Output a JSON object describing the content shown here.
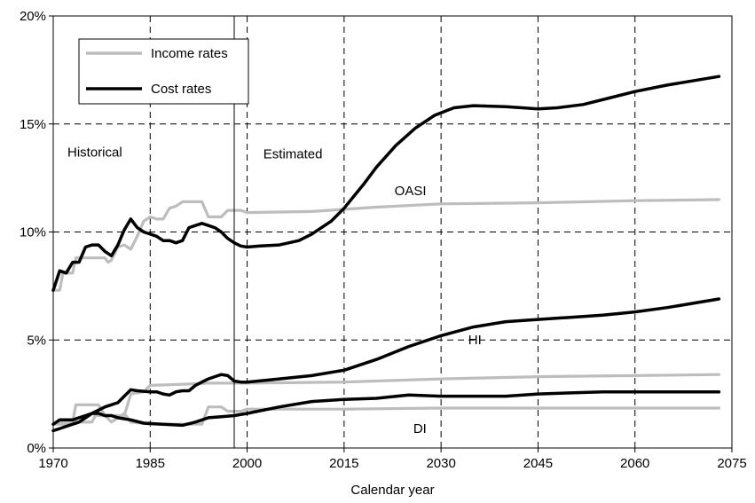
{
  "chart_data": {
    "type": "line",
    "title": "",
    "xlabel": "Calendar year",
    "ylabel": "",
    "xlim": [
      1970,
      2075
    ],
    "ylim": [
      0,
      20
    ],
    "x_ticks": [
      "1970",
      "1985",
      "2000",
      "2015",
      "2030",
      "2045",
      "2060",
      "2075"
    ],
    "y_ticks": [
      "0%",
      "5%",
      "10%",
      "15%",
      "20%"
    ],
    "grid": true,
    "legend": {
      "placement": "top-left",
      "entries": [
        {
          "label": "Income rates",
          "color": "#bdbdbd"
        },
        {
          "label": "Cost rates",
          "color": "#000000"
        }
      ]
    },
    "divider_year": 1998,
    "annotations": {
      "historical": "Historical",
      "estimated": "Estimated",
      "oasi": "OASI",
      "hi": "HI",
      "di": "DI"
    },
    "series": [
      {
        "program": "OASI",
        "kind": "income",
        "color": "#bdbdbd",
        "points": [
          [
            1970,
            7.3
          ],
          [
            1971,
            7.3
          ],
          [
            1971.5,
            8.1
          ],
          [
            1973,
            8.1
          ],
          [
            1973.5,
            8.8
          ],
          [
            1978,
            8.8
          ],
          [
            1978.5,
            8.6
          ],
          [
            1979,
            8.7
          ],
          [
            1980,
            9.3
          ],
          [
            1981,
            9.4
          ],
          [
            1982,
            9.2
          ],
          [
            1983,
            9.8
          ],
          [
            1984,
            10.5
          ],
          [
            1985,
            10.7
          ],
          [
            1986,
            10.6
          ],
          [
            1987,
            10.6
          ],
          [
            1988,
            11.1
          ],
          [
            1989,
            11.2
          ],
          [
            1990,
            11.4
          ],
          [
            1993,
            11.4
          ],
          [
            1994,
            10.7
          ],
          [
            1996,
            10.7
          ],
          [
            1997,
            11.0
          ],
          [
            1999,
            11.0
          ],
          [
            2000,
            10.9
          ],
          [
            2010,
            10.95
          ],
          [
            2020,
            11.15
          ],
          [
            2030,
            11.3
          ],
          [
            2045,
            11.35
          ],
          [
            2060,
            11.45
          ],
          [
            2073,
            11.5
          ]
        ]
      },
      {
        "program": "OASI",
        "kind": "cost",
        "color": "#000000",
        "points": [
          [
            1970,
            7.3
          ],
          [
            1971,
            8.2
          ],
          [
            1972,
            8.1
          ],
          [
            1973,
            8.6
          ],
          [
            1974,
            8.6
          ],
          [
            1975,
            9.3
          ],
          [
            1976,
            9.4
          ],
          [
            1977,
            9.4
          ],
          [
            1978,
            9.1
          ],
          [
            1979,
            8.9
          ],
          [
            1980,
            9.4
          ],
          [
            1981,
            10.1
          ],
          [
            1982,
            10.6
          ],
          [
            1983,
            10.2
          ],
          [
            1984,
            10.0
          ],
          [
            1985,
            9.9
          ],
          [
            1986,
            9.8
          ],
          [
            1987,
            9.6
          ],
          [
            1988,
            9.6
          ],
          [
            1989,
            9.5
          ],
          [
            1990,
            9.6
          ],
          [
            1991,
            10.2
          ],
          [
            1992,
            10.3
          ],
          [
            1993,
            10.4
          ],
          [
            1994,
            10.3
          ],
          [
            1995,
            10.2
          ],
          [
            1996,
            10.0
          ],
          [
            1997,
            9.7
          ],
          [
            1998,
            9.5
          ],
          [
            1999,
            9.35
          ],
          [
            2000,
            9.3
          ],
          [
            2002,
            9.35
          ],
          [
            2005,
            9.4
          ],
          [
            2008,
            9.6
          ],
          [
            2010,
            9.9
          ],
          [
            2013,
            10.5
          ],
          [
            2015,
            11.1
          ],
          [
            2018,
            12.2
          ],
          [
            2020,
            13.0
          ],
          [
            2023,
            14.0
          ],
          [
            2026,
            14.8
          ],
          [
            2029,
            15.4
          ],
          [
            2032,
            15.75
          ],
          [
            2035,
            15.85
          ],
          [
            2040,
            15.8
          ],
          [
            2045,
            15.7
          ],
          [
            2048,
            15.75
          ],
          [
            2052,
            15.9
          ],
          [
            2056,
            16.2
          ],
          [
            2060,
            16.5
          ],
          [
            2065,
            16.8
          ],
          [
            2070,
            17.05
          ],
          [
            2073,
            17.2
          ]
        ]
      },
      {
        "program": "HI",
        "kind": "income",
        "color": "#bdbdbd",
        "points": [
          [
            1970,
            1.1
          ],
          [
            1972,
            1.2
          ],
          [
            1973,
            1.2
          ],
          [
            1973.5,
            2.0
          ],
          [
            1977,
            2.0
          ],
          [
            1978,
            1.5
          ],
          [
            1981,
            1.5
          ],
          [
            1982,
            2.5
          ],
          [
            1984,
            2.6
          ],
          [
            1985,
            2.9
          ],
          [
            1990,
            2.95
          ],
          [
            1994,
            3.0
          ],
          [
            1998,
            3.0
          ],
          [
            2000,
            3.0
          ],
          [
            2015,
            3.05
          ],
          [
            2030,
            3.2
          ],
          [
            2045,
            3.3
          ],
          [
            2060,
            3.35
          ],
          [
            2073,
            3.4
          ]
        ]
      },
      {
        "program": "HI",
        "kind": "cost",
        "color": "#000000",
        "points": [
          [
            1970,
            0.8
          ],
          [
            1971,
            0.9
          ],
          [
            1972,
            1.0
          ],
          [
            1974,
            1.2
          ],
          [
            1976,
            1.6
          ],
          [
            1978,
            1.9
          ],
          [
            1980,
            2.1
          ],
          [
            1981,
            2.4
          ],
          [
            1982,
            2.7
          ],
          [
            1983,
            2.65
          ],
          [
            1985,
            2.6
          ],
          [
            1986,
            2.6
          ],
          [
            1987,
            2.5
          ],
          [
            1988,
            2.45
          ],
          [
            1989,
            2.6
          ],
          [
            1990,
            2.65
          ],
          [
            1991,
            2.65
          ],
          [
            1992,
            2.9
          ],
          [
            1993,
            3.05
          ],
          [
            1994,
            3.2
          ],
          [
            1995,
            3.3
          ],
          [
            1996,
            3.4
          ],
          [
            1997,
            3.35
          ],
          [
            1998,
            3.1
          ],
          [
            1999,
            3.05
          ],
          [
            2000,
            3.05
          ],
          [
            2005,
            3.2
          ],
          [
            2010,
            3.35
          ],
          [
            2015,
            3.6
          ],
          [
            2020,
            4.1
          ],
          [
            2025,
            4.7
          ],
          [
            2030,
            5.2
          ],
          [
            2035,
            5.6
          ],
          [
            2040,
            5.85
          ],
          [
            2045,
            5.95
          ],
          [
            2050,
            6.05
          ],
          [
            2055,
            6.15
          ],
          [
            2060,
            6.3
          ],
          [
            2065,
            6.5
          ],
          [
            2070,
            6.75
          ],
          [
            2073,
            6.9
          ]
        ]
      },
      {
        "program": "DI",
        "kind": "income",
        "color": "#bdbdbd",
        "points": [
          [
            1970,
            1.1
          ],
          [
            1972,
            1.1
          ],
          [
            1973,
            1.2
          ],
          [
            1976,
            1.2
          ],
          [
            1976.5,
            1.5
          ],
          [
            1978,
            1.5
          ],
          [
            1979,
            1.2
          ],
          [
            1980,
            1.4
          ],
          [
            1981,
            1.6
          ],
          [
            1982,
            1.2
          ],
          [
            1985,
            1.1
          ],
          [
            1993,
            1.1
          ],
          [
            1994,
            1.9
          ],
          [
            1996,
            1.9
          ],
          [
            1997,
            1.7
          ],
          [
            1999,
            1.7
          ],
          [
            2000,
            1.8
          ],
          [
            2015,
            1.8
          ],
          [
            2030,
            1.85
          ],
          [
            2045,
            1.85
          ],
          [
            2060,
            1.85
          ],
          [
            2073,
            1.85
          ]
        ]
      },
      {
        "program": "DI",
        "kind": "cost",
        "color": "#000000",
        "points": [
          [
            1970,
            1.1
          ],
          [
            1971,
            1.3
          ],
          [
            1973,
            1.3
          ],
          [
            1974,
            1.4
          ],
          [
            1975,
            1.5
          ],
          [
            1976,
            1.6
          ],
          [
            1977,
            1.6
          ],
          [
            1978,
            1.5
          ],
          [
            1979,
            1.5
          ],
          [
            1980,
            1.4
          ],
          [
            1982,
            1.3
          ],
          [
            1984,
            1.15
          ],
          [
            1987,
            1.1
          ],
          [
            1990,
            1.05
          ],
          [
            1992,
            1.2
          ],
          [
            1994,
            1.4
          ],
          [
            1996,
            1.45
          ],
          [
            1998,
            1.5
          ],
          [
            2000,
            1.6
          ],
          [
            2005,
            1.9
          ],
          [
            2010,
            2.15
          ],
          [
            2015,
            2.25
          ],
          [
            2020,
            2.3
          ],
          [
            2025,
            2.45
          ],
          [
            2030,
            2.4
          ],
          [
            2040,
            2.4
          ],
          [
            2045,
            2.5
          ],
          [
            2050,
            2.55
          ],
          [
            2055,
            2.6
          ],
          [
            2060,
            2.6
          ],
          [
            2065,
            2.6
          ],
          [
            2073,
            2.6
          ]
        ]
      }
    ]
  }
}
